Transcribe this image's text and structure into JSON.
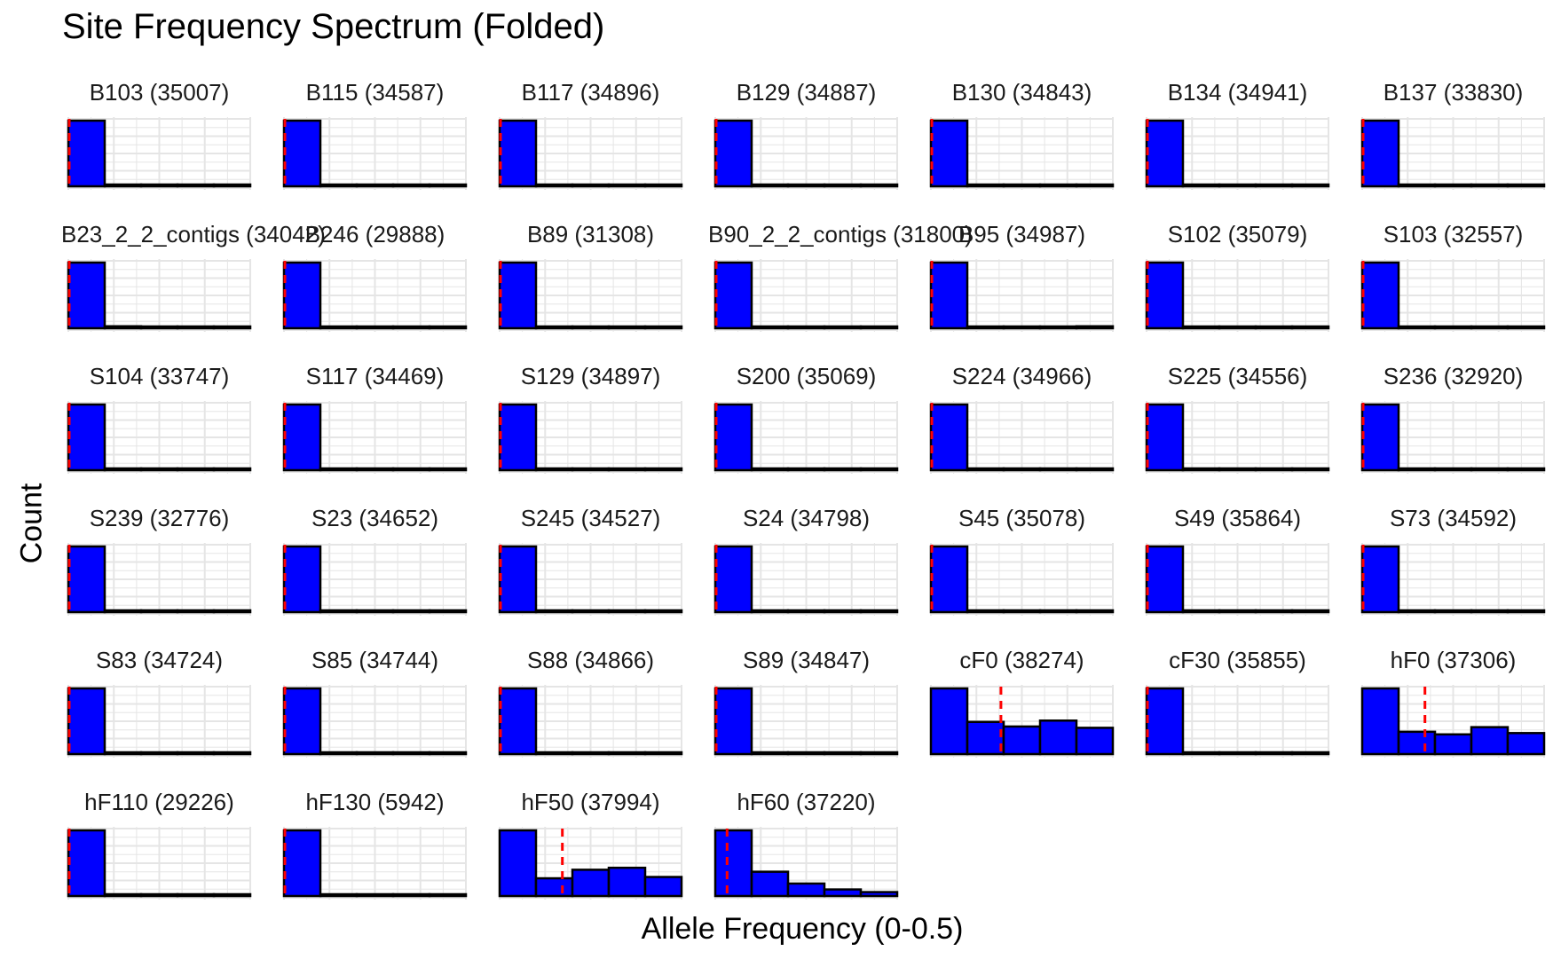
{
  "chart_data": {
    "type": "bar",
    "title": "Site Frequency Spectrum (Folded)",
    "xlabel": "Allele Frequency (0-0.5)",
    "ylabel": "Count",
    "xlim": [
      0,
      0.5
    ],
    "bins": 5,
    "grid": true,
    "facets": [
      {
        "label": "B103 (35007)",
        "values": [
          1.0,
          0.01,
          0.01,
          0.01,
          0.02
        ],
        "mean_line": 0.0
      },
      {
        "label": "B115 (34587)",
        "values": [
          1.0,
          0.01,
          0.01,
          0.01,
          0.01
        ],
        "mean_line": 0.0
      },
      {
        "label": "B117 (34896)",
        "values": [
          1.0,
          0.01,
          0.01,
          0.01,
          0.02
        ],
        "mean_line": 0.0
      },
      {
        "label": "B129 (34887)",
        "values": [
          1.0,
          0.01,
          0.01,
          0.01,
          0.02
        ],
        "mean_line": 0.0
      },
      {
        "label": "B130 (34843)",
        "values": [
          1.0,
          0.01,
          0.01,
          0.02,
          0.02
        ],
        "mean_line": 0.0
      },
      {
        "label": "B134 (34941)",
        "values": [
          1.0,
          0.01,
          0.01,
          0.01,
          0.02
        ],
        "mean_line": 0.0
      },
      {
        "label": "B137 (33830)",
        "values": [
          1.0,
          0.01,
          0.01,
          0.01,
          0.01
        ],
        "mean_line": 0.0
      },
      {
        "label": "B23_2_2_contigs (34042)",
        "values": [
          1.0,
          0.03,
          0.01,
          0.01,
          0.01
        ],
        "mean_line": 0.0
      },
      {
        "label": "B246 (29888)",
        "values": [
          1.0,
          0.01,
          0.01,
          0.01,
          0.01
        ],
        "mean_line": 0.0
      },
      {
        "label": "B89 (31308)",
        "values": [
          1.0,
          0.01,
          0.01,
          0.01,
          0.01
        ],
        "mean_line": 0.0
      },
      {
        "label": "B90_2_2_contigs (31800)",
        "values": [
          1.0,
          0.01,
          0.01,
          0.01,
          0.01
        ],
        "mean_line": 0.0
      },
      {
        "label": "B95 (34987)",
        "values": [
          1.0,
          0.01,
          0.02,
          0.02,
          0.03
        ],
        "mean_line": 0.0
      },
      {
        "label": "S102 (35079)",
        "values": [
          1.0,
          0.01,
          0.01,
          0.01,
          0.01
        ],
        "mean_line": 0.0
      },
      {
        "label": "S103 (32557)",
        "values": [
          1.0,
          0.01,
          0.01,
          0.01,
          0.01
        ],
        "mean_line": 0.0
      },
      {
        "label": "S104 (33747)",
        "values": [
          1.0,
          0.01,
          0.01,
          0.01,
          0.01
        ],
        "mean_line": 0.0
      },
      {
        "label": "S117 (34469)",
        "values": [
          1.0,
          0.01,
          0.01,
          0.01,
          0.01
        ],
        "mean_line": 0.0
      },
      {
        "label": "S129 (34897)",
        "values": [
          1.0,
          0.01,
          0.01,
          0.01,
          0.02
        ],
        "mean_line": 0.0
      },
      {
        "label": "S200 (35069)",
        "values": [
          1.0,
          0.01,
          0.01,
          0.01,
          0.01
        ],
        "mean_line": 0.0
      },
      {
        "label": "S224 (34966)",
        "values": [
          1.0,
          0.01,
          0.01,
          0.01,
          0.02
        ],
        "mean_line": 0.0
      },
      {
        "label": "S225 (34556)",
        "values": [
          1.0,
          0.01,
          0.01,
          0.01,
          0.01
        ],
        "mean_line": 0.0
      },
      {
        "label": "S236 (32920)",
        "values": [
          1.0,
          0.01,
          0.01,
          0.01,
          0.01
        ],
        "mean_line": 0.0
      },
      {
        "label": "S239 (32776)",
        "values": [
          1.0,
          0.01,
          0.01,
          0.01,
          0.01
        ],
        "mean_line": 0.0
      },
      {
        "label": "S23 (34652)",
        "values": [
          1.0,
          0.01,
          0.01,
          0.01,
          0.01
        ],
        "mean_line": 0.0
      },
      {
        "label": "S245 (34527)",
        "values": [
          1.0,
          0.01,
          0.01,
          0.01,
          0.01
        ],
        "mean_line": 0.0
      },
      {
        "label": "S24 (34798)",
        "values": [
          1.0,
          0.01,
          0.01,
          0.01,
          0.01
        ],
        "mean_line": 0.0
      },
      {
        "label": "S45 (35078)",
        "values": [
          1.0,
          0.01,
          0.01,
          0.01,
          0.01
        ],
        "mean_line": 0.0
      },
      {
        "label": "S49 (35864)",
        "values": [
          1.0,
          0.02,
          0.01,
          0.01,
          0.01
        ],
        "mean_line": 0.0
      },
      {
        "label": "S73 (34592)",
        "values": [
          1.0,
          0.01,
          0.01,
          0.01,
          0.01
        ],
        "mean_line": 0.0
      },
      {
        "label": "S83 (34724)",
        "values": [
          1.0,
          0.01,
          0.01,
          0.01,
          0.02
        ],
        "mean_line": 0.0
      },
      {
        "label": "S85 (34744)",
        "values": [
          1.0,
          0.01,
          0.01,
          0.01,
          0.01
        ],
        "mean_line": 0.0
      },
      {
        "label": "S88 (34866)",
        "values": [
          1.0,
          0.01,
          0.01,
          0.01,
          0.01
        ],
        "mean_line": 0.0
      },
      {
        "label": "S89 (34847)",
        "values": [
          1.0,
          0.01,
          0.01,
          0.01,
          0.01
        ],
        "mean_line": 0.0
      },
      {
        "label": "cF0 (38274)",
        "values": [
          1.0,
          0.49,
          0.42,
          0.51,
          0.4
        ],
        "mean_line": 0.19
      },
      {
        "label": "cF30 (35855)",
        "values": [
          1.0,
          0.02,
          0.01,
          0.01,
          0.01
        ],
        "mean_line": 0.0
      },
      {
        "label": "hF0 (37306)",
        "values": [
          1.0,
          0.34,
          0.3,
          0.41,
          0.32
        ],
        "mean_line": 0.17
      },
      {
        "label": "hF110 (29226)",
        "values": [
          1.0,
          0.02,
          0.01,
          0.02,
          0.02
        ],
        "mean_line": 0.0
      },
      {
        "label": "hF130 (5942)",
        "values": [
          1.0,
          0.01,
          0.01,
          0.01,
          0.01
        ],
        "mean_line": 0.0
      },
      {
        "label": "hF50 (37994)",
        "values": [
          1.0,
          0.27,
          0.4,
          0.43,
          0.29
        ],
        "mean_line": 0.17
      },
      {
        "label": "hF60 (37220)",
        "values": [
          1.0,
          0.37,
          0.19,
          0.1,
          0.06
        ],
        "mean_line": 0.03
      }
    ],
    "bar_fill": "#0000ff",
    "bar_stroke": "#000000",
    "mean_line_color": "#ff0000",
    "grid_color": "#e5e5e5"
  }
}
